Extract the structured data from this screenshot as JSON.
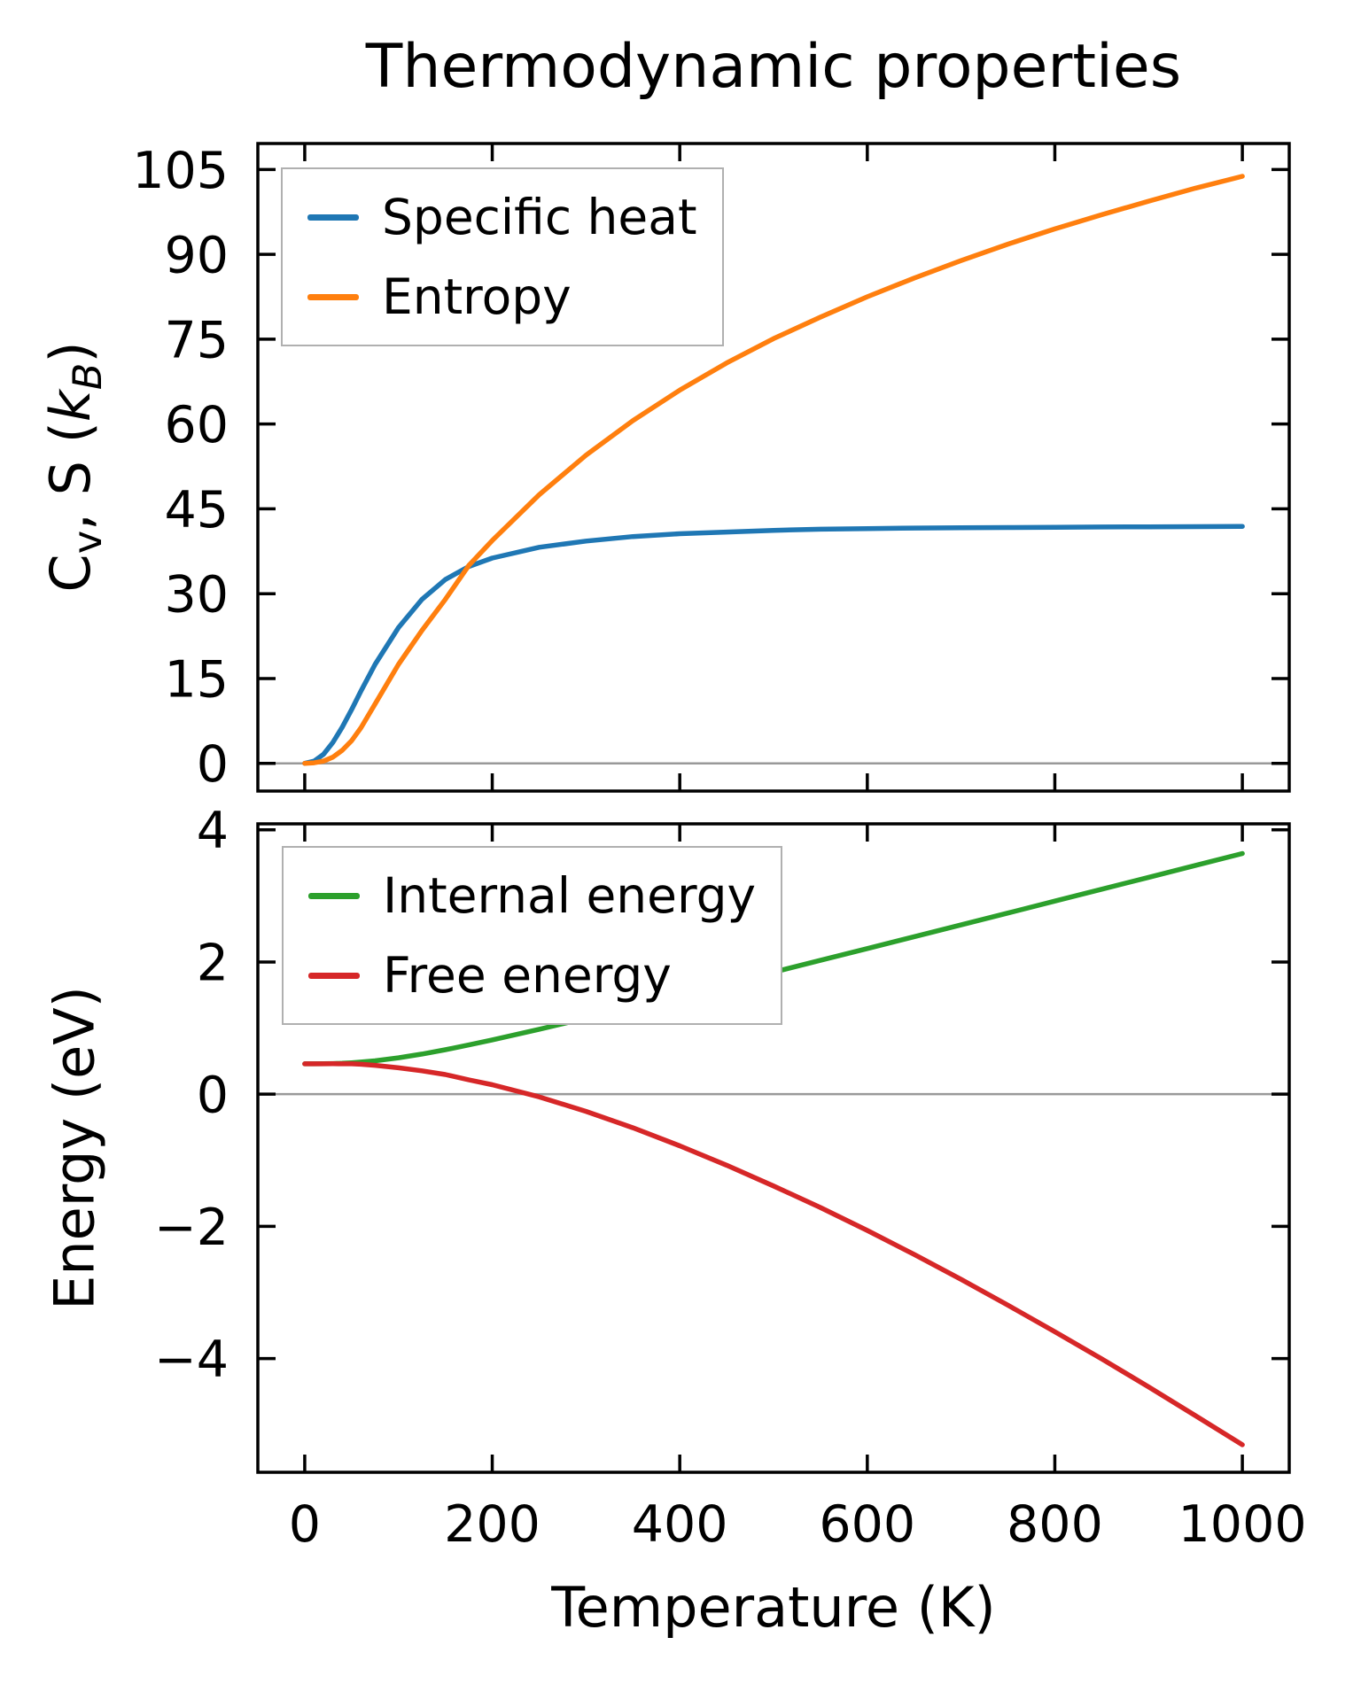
{
  "chart_data": {
    "type": "line",
    "title": "Thermodynamic properties",
    "x_label": "Temperature (K)",
    "x_range": [
      -50,
      1050
    ],
    "x_ticks": [
      0,
      200,
      400,
      600,
      800,
      1000
    ],
    "x_tick_labels": [
      "0",
      "200",
      "400",
      "600",
      "800",
      "1000"
    ],
    "x": [
      0,
      10,
      20,
      30,
      40,
      50,
      60,
      75,
      100,
      125,
      150,
      175,
      200,
      250,
      300,
      350,
      400,
      450,
      500,
      550,
      600,
      650,
      700,
      750,
      800,
      850,
      900,
      950,
      1000
    ],
    "panels": [
      {
        "y_label": "Cv, S (kB)",
        "y_label_parts": [
          "C",
          "v",
          ", S (",
          "k",
          "B",
          ")"
        ],
        "y_range": [
          -4.9,
          109.6
        ],
        "y_tick_values": [
          0,
          15,
          30,
          45,
          60,
          75,
          90,
          105
        ],
        "y_tick_labels": [
          "0",
          "15",
          "30",
          "45",
          "60",
          "75",
          "90",
          "105"
        ],
        "zero_line": true,
        "zero_line_color": "#999999",
        "legend_position": "upper left",
        "series": [
          {
            "key": "specific-heat",
            "name": "Specific heat",
            "color": "#1f77b4",
            "values": [
              0,
              0.4,
              1.6,
              3.7,
              6.4,
              9.5,
              12.8,
              17.5,
              24.0,
              29.0,
              32.5,
              34.8,
              36.3,
              38.2,
              39.3,
              40.1,
              40.6,
              40.9,
              41.2,
              41.4,
              41.5,
              41.6,
              41.65,
              41.7,
              41.75,
              41.8,
              41.82,
              41.85,
              41.9
            ]
          },
          {
            "key": "entropy",
            "name": "Entropy",
            "color": "#ff7f0e",
            "values": [
              0,
              0.1,
              0.4,
              1.1,
              2.3,
              4.0,
              6.3,
              10.5,
              17.5,
              23.5,
              29.0,
              35.0,
              39.4,
              47.5,
              54.5,
              60.6,
              66.0,
              70.8,
              75.1,
              78.9,
              82.5,
              85.8,
              88.9,
              91.8,
              94.5,
              97.0,
              99.4,
              101.7,
              103.8
            ]
          }
        ]
      },
      {
        "y_label": "Energy (eV)",
        "y_range": [
          -5.72,
          4.09
        ],
        "y_tick_values": [
          -4,
          -2,
          0,
          2,
          4
        ],
        "y_tick_labels": [
          "−4",
          "−2",
          "0",
          "2",
          "4"
        ],
        "zero_line": true,
        "zero_line_color": "#999999",
        "legend_position": "upper left",
        "series": [
          {
            "key": "internal-energy",
            "name": "Internal energy",
            "color": "#2ca02c",
            "values": [
              0.46,
              0.46,
              0.461,
              0.463,
              0.468,
              0.476,
              0.486,
              0.505,
              0.55,
              0.607,
              0.673,
              0.745,
              0.822,
              0.982,
              1.149,
              1.32,
              1.494,
              1.67,
              1.847,
              2.025,
              2.203,
              2.382,
              2.561,
              2.741,
              2.921,
              3.101,
              3.281,
              3.461,
              3.641
            ]
          },
          {
            "key": "free-energy",
            "name": "Free energy",
            "color": "#d62728",
            "values": [
              0.46,
              0.46,
              0.46,
              0.461,
              0.46,
              0.459,
              0.453,
              0.437,
              0.399,
              0.354,
              0.298,
              0.217,
              0.143,
              -0.041,
              -0.26,
              -0.508,
              -0.781,
              -1.075,
              -1.389,
              -1.714,
              -2.062,
              -2.424,
              -2.801,
              -3.192,
              -3.594,
              -4.004,
              -4.428,
              -4.864,
              -5.303
            ]
          }
        ]
      }
    ]
  }
}
